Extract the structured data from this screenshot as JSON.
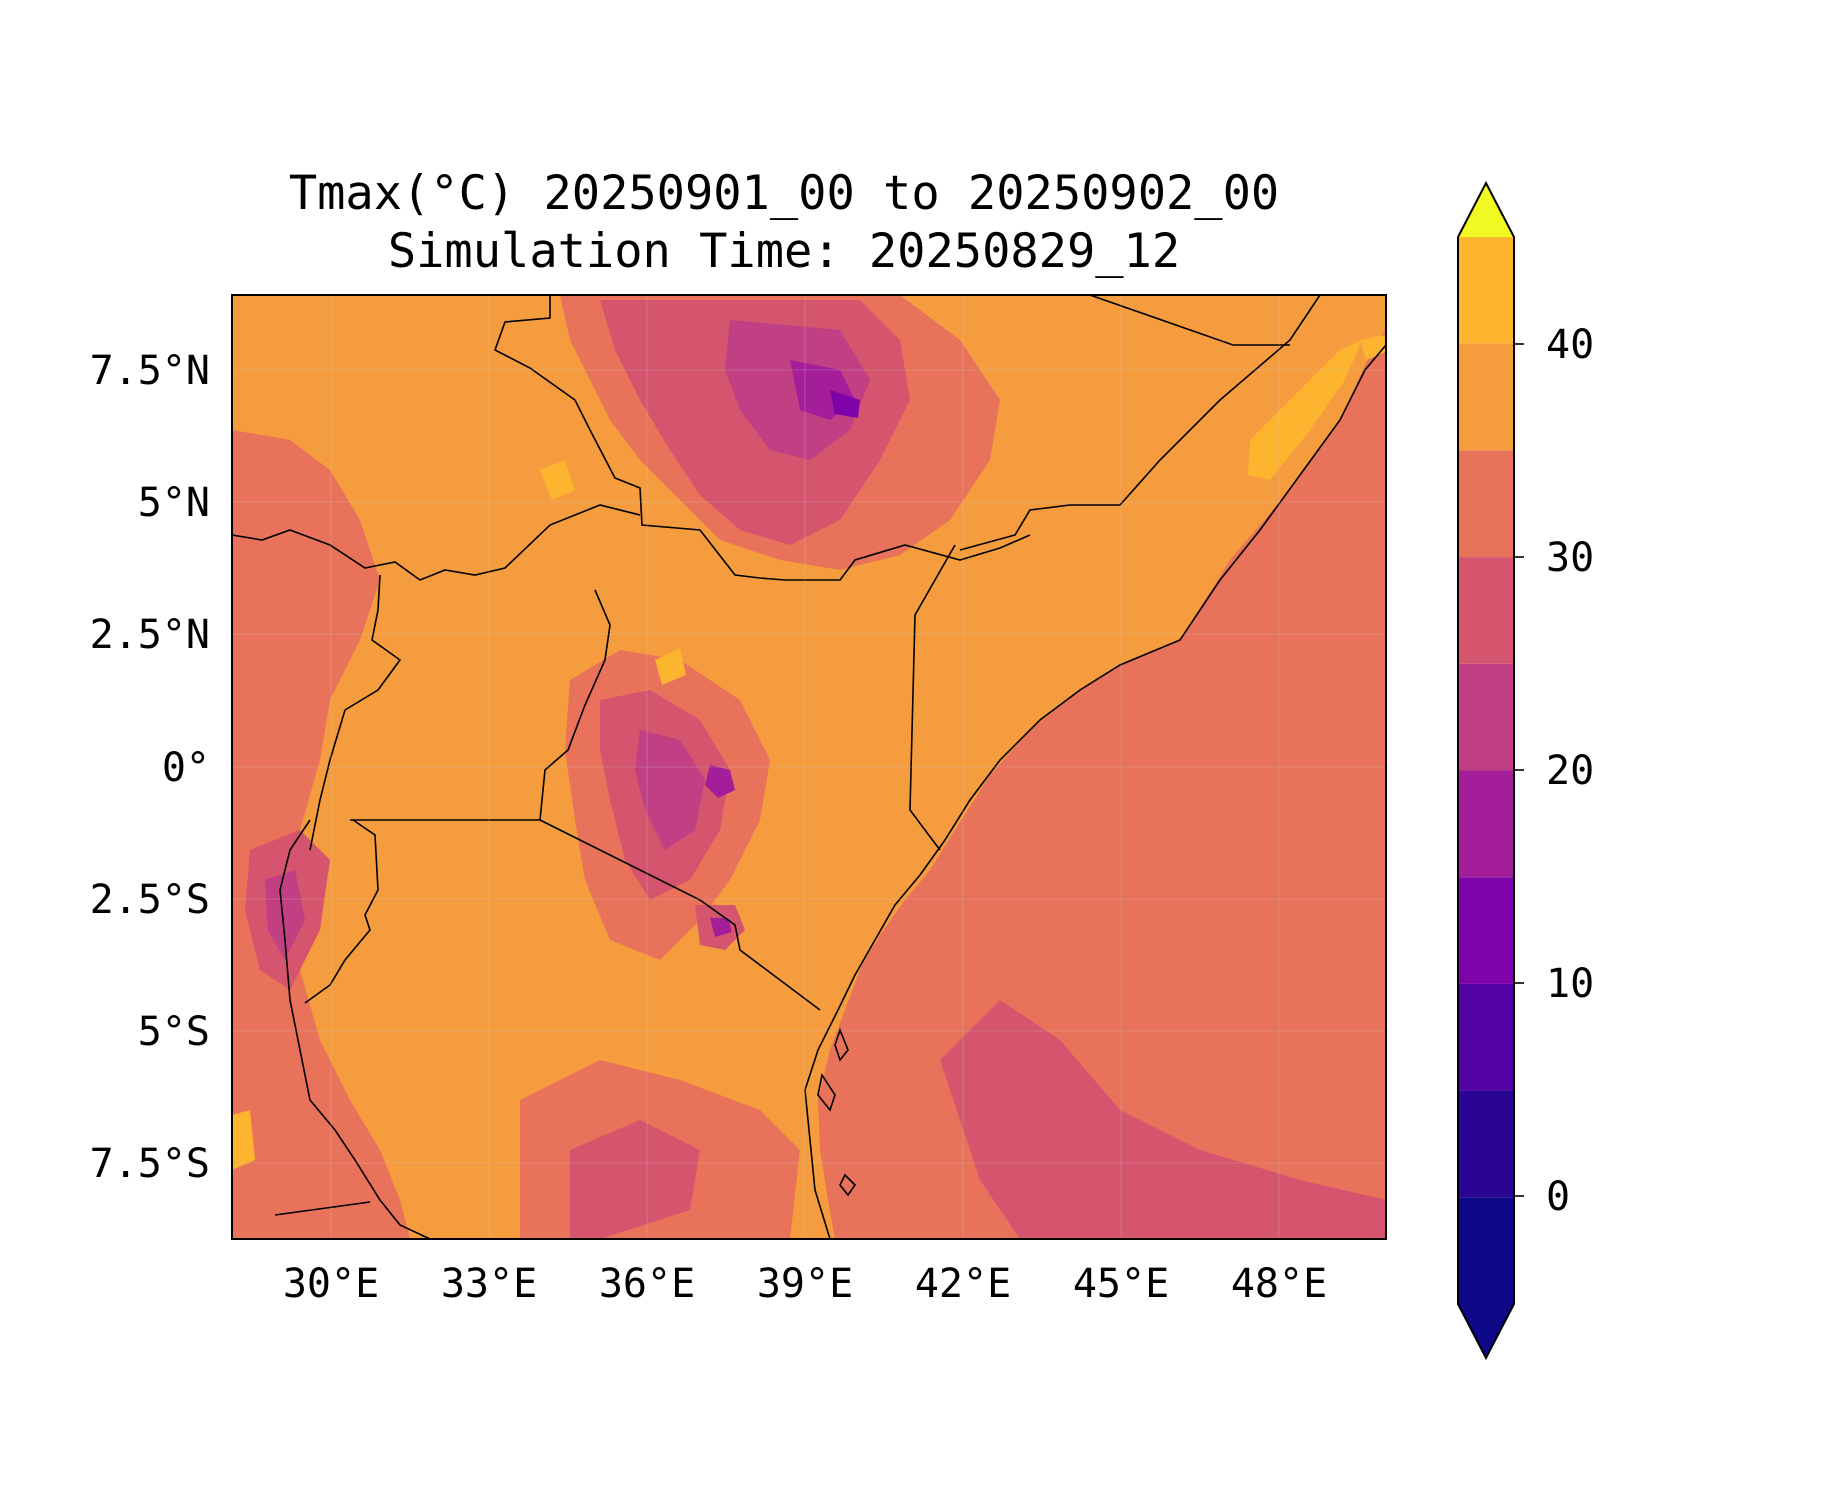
{
  "title": {
    "line1": "Tmax(°C) 20250901_00 to 20250902_00",
    "line2": "Simulation Time: 20250829_12"
  },
  "map": {
    "variable": "Tmax",
    "units": "°C",
    "extent": {
      "lon": [
        27.0,
        50.7
      ],
      "lat": [
        -9.0,
        9.0
      ]
    },
    "lon_ticks": [
      "30°E",
      "33°E",
      "36°E",
      "39°E",
      "42°E",
      "45°E",
      "48°E"
    ],
    "lat_ticks": [
      "7.5°N",
      "5°N",
      "2.5°N",
      "0°",
      "2.5°S",
      "5°S",
      "7.5°S"
    ],
    "gridlines": true
  },
  "colorbar": {
    "ticks": [
      "40",
      "30",
      "20",
      "10",
      "0"
    ],
    "levels": [
      -5,
      0,
      5,
      10,
      15,
      20,
      25,
      30,
      35,
      40,
      45
    ],
    "colors": [
      "#0d0887",
      "#2a0593",
      "#5302a3",
      "#7e03a8",
      "#a41e9a",
      "#c13f83",
      "#d5546e",
      "#e8725a",
      "#f59c3e",
      "#fdb42f",
      "#f2e526"
    ],
    "extend": "both",
    "under_color": "#0d0887",
    "over_color": "#f0f921",
    "dominant_land_color": "#f59c3e",
    "dominant_ocean_color": "#e8725a"
  }
}
